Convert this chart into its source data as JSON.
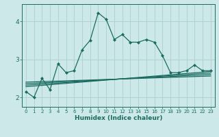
{
  "xlabel": "Humidex (Indice chaleur)",
  "background_color": "#cce8e8",
  "line_color": "#1a6b60",
  "grid_color": "#aacfcf",
  "xlim": [
    -0.5,
    23.5
  ],
  "ylim": [
    1.75,
    4.45
  ],
  "yticks": [
    2,
    3,
    4
  ],
  "xticks": [
    0,
    1,
    2,
    3,
    4,
    5,
    6,
    7,
    8,
    9,
    10,
    11,
    12,
    13,
    14,
    15,
    16,
    17,
    18,
    19,
    20,
    21,
    22,
    23
  ],
  "main_line_x": [
    0,
    1,
    2,
    3,
    4,
    5,
    6,
    7,
    8,
    9,
    10,
    11,
    12,
    13,
    14,
    15,
    16,
    17,
    18,
    19,
    20,
    21,
    22,
    23
  ],
  "main_line_y": [
    2.15,
    2.0,
    2.5,
    2.2,
    2.88,
    2.65,
    2.7,
    3.25,
    3.5,
    4.22,
    4.05,
    3.52,
    3.65,
    3.45,
    3.45,
    3.52,
    3.45,
    3.1,
    2.65,
    2.65,
    2.7,
    2.85,
    2.7,
    2.7
  ],
  "reg_lines": [
    {
      "x": [
        0,
        23
      ],
      "y": [
        2.28,
        2.68
      ]
    },
    {
      "x": [
        0,
        23
      ],
      "y": [
        2.32,
        2.64
      ]
    },
    {
      "x": [
        0,
        23
      ],
      "y": [
        2.36,
        2.6
      ]
    },
    {
      "x": [
        0,
        23
      ],
      "y": [
        2.4,
        2.56
      ]
    }
  ],
  "xlabel_fontsize": 6.5,
  "xlabel_fontweight": "bold",
  "xtick_fontsize": 5.0,
  "ytick_fontsize": 6.5
}
